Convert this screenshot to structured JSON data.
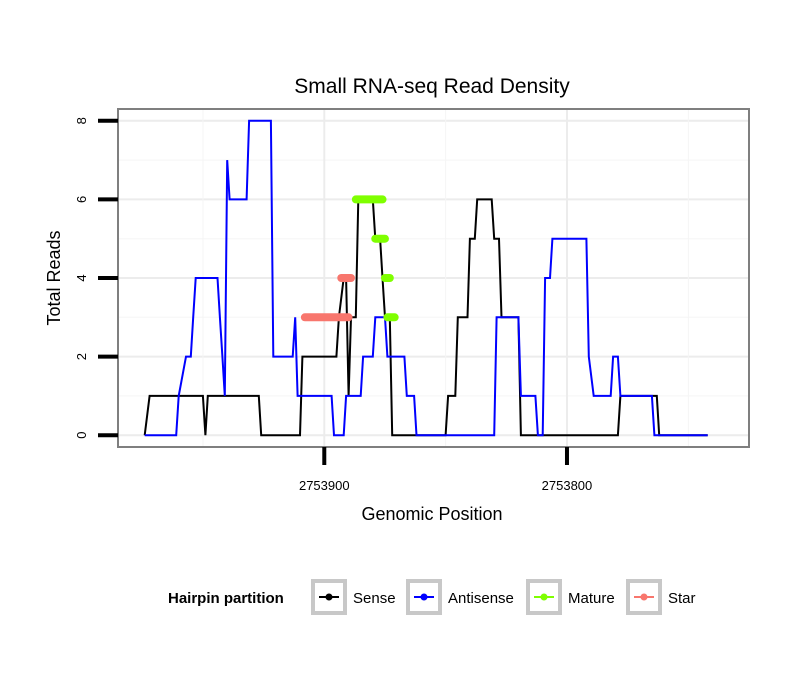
{
  "chart_data": {
    "type": "line",
    "title": "Small RNA-seq Read Density",
    "xlabel": "Genomic Position",
    "ylabel": "Total Reads",
    "xlim": [
      2753985,
      2753725
    ],
    "x_reversed": true,
    "ylim": [
      -0.3,
      8.3
    ],
    "x_ticks": [
      2753900,
      2753800
    ],
    "x_tick_labels": [
      "2753900",
      "2753800"
    ],
    "y_ticks": [
      0,
      2,
      4,
      6,
      8
    ],
    "y_tick_labels": [
      "0",
      "2",
      "4",
      "6",
      "8"
    ],
    "grid": true,
    "legend": {
      "title": "Hairpin partition",
      "placement": "bottom",
      "entries": [
        {
          "name": "Sense",
          "color": "#000000"
        },
        {
          "name": "Antisense",
          "color": "#0000ff"
        },
        {
          "name": "Mature",
          "color": "#7fff00"
        },
        {
          "name": "Star",
          "color": "#f8766d"
        }
      ]
    },
    "series": [
      {
        "name": "Sense",
        "color": "#000000",
        "style": "line",
        "points": [
          [
            2753974,
            0
          ],
          [
            2753972,
            1
          ],
          [
            2753950,
            1
          ],
          [
            2753949,
            0
          ],
          [
            2753948,
            1
          ],
          [
            2753927,
            1
          ],
          [
            2753926,
            0
          ],
          [
            2753910,
            0
          ],
          [
            2753909,
            2
          ],
          [
            2753895,
            2
          ],
          [
            2753894,
            3
          ],
          [
            2753892,
            4
          ],
          [
            2753891,
            4
          ],
          [
            2753890,
            1
          ],
          [
            2753889,
            3
          ],
          [
            2753887,
            3
          ],
          [
            2753886,
            6
          ],
          [
            2753880,
            6
          ],
          [
            2753879,
            5
          ],
          [
            2753877,
            5
          ],
          [
            2753876,
            4
          ],
          [
            2753875,
            3
          ],
          [
            2753873,
            3
          ],
          [
            2753872,
            0
          ],
          [
            2753850,
            0
          ],
          [
            2753849,
            1
          ],
          [
            2753846,
            1
          ],
          [
            2753845,
            3
          ],
          [
            2753841,
            3
          ],
          [
            2753840,
            5
          ],
          [
            2753838,
            5
          ],
          [
            2753837,
            6
          ],
          [
            2753831,
            6
          ],
          [
            2753830,
            5
          ],
          [
            2753828,
            5
          ],
          [
            2753827,
            3
          ],
          [
            2753820,
            3
          ],
          [
            2753819,
            0
          ],
          [
            2753779,
            0
          ],
          [
            2753778,
            1
          ],
          [
            2753763,
            1
          ],
          [
            2753762,
            0
          ],
          [
            2753742,
            0
          ]
        ]
      },
      {
        "name": "Antisense",
        "color": "#0000ff",
        "style": "line",
        "points": [
          [
            2753974,
            0
          ],
          [
            2753961,
            0
          ],
          [
            2753960,
            1
          ],
          [
            2753957,
            2
          ],
          [
            2753955,
            2
          ],
          [
            2753954,
            3
          ],
          [
            2753953,
            4
          ],
          [
            2753944,
            4
          ],
          [
            2753943,
            3
          ],
          [
            2753942,
            2
          ],
          [
            2753941,
            1
          ],
          [
            2753940,
            7
          ],
          [
            2753939,
            6
          ],
          [
            2753932,
            6
          ],
          [
            2753931,
            8
          ],
          [
            2753922,
            8
          ],
          [
            2753921,
            2
          ],
          [
            2753913,
            2
          ],
          [
            2753912,
            3
          ],
          [
            2753911,
            1
          ],
          [
            2753897,
            1
          ],
          [
            2753896,
            0
          ],
          [
            2753892,
            0
          ],
          [
            2753891,
            1
          ],
          [
            2753885,
            1
          ],
          [
            2753884,
            2
          ],
          [
            2753880,
            2
          ],
          [
            2753879,
            3
          ],
          [
            2753875,
            3
          ],
          [
            2753874,
            2
          ],
          [
            2753867,
            2
          ],
          [
            2753866,
            1
          ],
          [
            2753863,
            1
          ],
          [
            2753862,
            0
          ],
          [
            2753830,
            0
          ],
          [
            2753829,
            3
          ],
          [
            2753820,
            3
          ],
          [
            2753819,
            1
          ],
          [
            2753813,
            1
          ],
          [
            2753812,
            0
          ],
          [
            2753810,
            0
          ],
          [
            2753809,
            4
          ],
          [
            2753807,
            4
          ],
          [
            2753806,
            5
          ],
          [
            2753792,
            5
          ],
          [
            2753791,
            2
          ],
          [
            2753789,
            1
          ],
          [
            2753782,
            1
          ],
          [
            2753781,
            2
          ],
          [
            2753779,
            2
          ],
          [
            2753778,
            1
          ],
          [
            2753765,
            1
          ],
          [
            2753764,
            0
          ],
          [
            2753742,
            0
          ]
        ]
      },
      {
        "name": "Mature",
        "color": "#7fff00",
        "style": "dots",
        "segments": [
          {
            "x": [
              2753887,
              2753876
            ],
            "y": 6
          },
          {
            "x": [
              2753879,
              2753875
            ],
            "y": 5
          },
          {
            "x": [
              2753875,
              2753873
            ],
            "y": 4
          },
          {
            "x": [
              2753874,
              2753871
            ],
            "y": 3
          }
        ]
      },
      {
        "name": "Star",
        "color": "#f8766d",
        "style": "dots",
        "segments": [
          {
            "x": [
              2753908,
              2753890
            ],
            "y": 3
          },
          {
            "x": [
              2753893,
              2753889
            ],
            "y": 4
          }
        ]
      }
    ]
  }
}
